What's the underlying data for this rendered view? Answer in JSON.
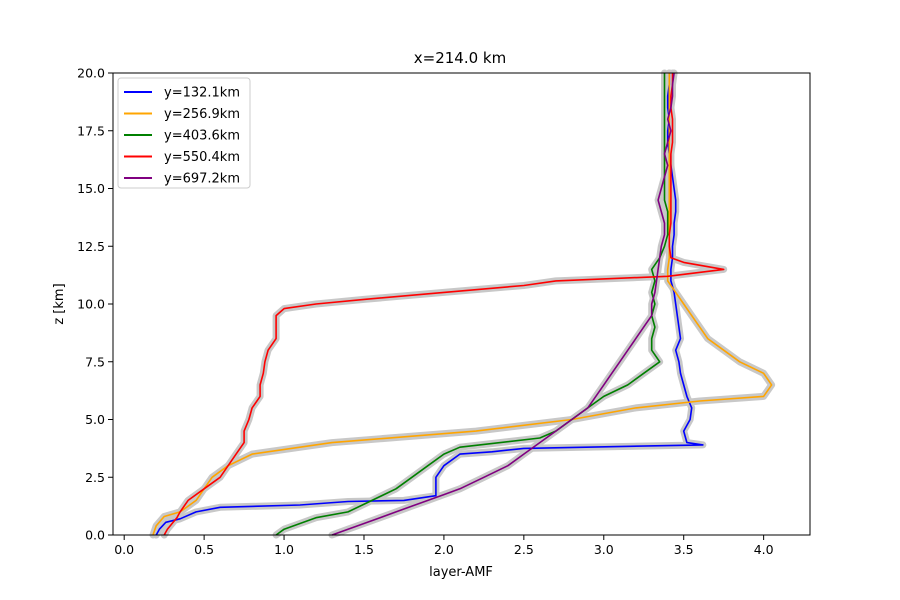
{
  "chart_data": {
    "type": "line",
    "title": "x=214.0 km",
    "xlabel": "layer-AMF",
    "ylabel": "z [km]",
    "xlim": [
      -0.07,
      4.29
    ],
    "ylim": [
      0,
      20
    ],
    "xticks": [
      0.0,
      0.5,
      1.0,
      1.5,
      2.0,
      2.5,
      3.0,
      3.5,
      4.0
    ],
    "xtick_labels": [
      "0.0",
      "0.5",
      "1.0",
      "1.5",
      "2.0",
      "2.5",
      "3.0",
      "3.5",
      "4.0"
    ],
    "yticks": [
      0.0,
      2.5,
      5.0,
      7.5,
      10.0,
      12.5,
      15.0,
      17.5,
      20.0
    ],
    "ytick_labels": [
      "0.0",
      "2.5",
      "5.0",
      "7.5",
      "10.0",
      "12.5",
      "15.0",
      "17.5",
      "20.0"
    ],
    "grid": false,
    "legend": "upper-left",
    "uncertainty_band_color": "#c8c8c8",
    "series": [
      {
        "name": "y=132.1km",
        "color": "#0000ff",
        "points": [
          [
            0.2,
            0
          ],
          [
            0.22,
            0.25
          ],
          [
            0.26,
            0.55
          ],
          [
            0.35,
            0.7
          ],
          [
            0.45,
            1.0
          ],
          [
            0.6,
            1.2
          ],
          [
            1.1,
            1.3
          ],
          [
            1.4,
            1.45
          ],
          [
            1.75,
            1.5
          ],
          [
            1.95,
            1.7
          ],
          [
            1.95,
            2.5
          ],
          [
            2.0,
            3.0
          ],
          [
            2.1,
            3.5
          ],
          [
            2.3,
            3.6
          ],
          [
            2.5,
            3.75
          ],
          [
            3.62,
            3.9
          ],
          [
            3.52,
            4.0
          ],
          [
            3.5,
            4.5
          ],
          [
            3.54,
            5.0
          ],
          [
            3.55,
            5.5
          ],
          [
            3.52,
            6.0
          ],
          [
            3.5,
            6.5
          ],
          [
            3.48,
            7.0
          ],
          [
            3.47,
            7.5
          ],
          [
            3.45,
            8.0
          ],
          [
            3.48,
            8.5
          ],
          [
            3.47,
            9.0
          ],
          [
            3.46,
            9.5
          ],
          [
            3.45,
            10.0
          ],
          [
            3.44,
            10.5
          ],
          [
            3.42,
            11.0
          ],
          [
            3.42,
            11.5
          ],
          [
            3.43,
            12.0
          ],
          [
            3.43,
            12.5
          ],
          [
            3.44,
            13.0
          ],
          [
            3.44,
            13.5
          ],
          [
            3.45,
            14.0
          ],
          [
            3.45,
            14.5
          ],
          [
            3.44,
            15.0
          ],
          [
            3.43,
            15.5
          ],
          [
            3.42,
            16.0
          ],
          [
            3.41,
            16.5
          ],
          [
            3.4,
            17.0
          ],
          [
            3.4,
            17.5
          ],
          [
            3.41,
            18.0
          ],
          [
            3.4,
            18.5
          ],
          [
            3.4,
            19.0
          ],
          [
            3.41,
            19.5
          ],
          [
            3.41,
            20.0
          ]
        ]
      },
      {
        "name": "y=256.9km",
        "color": "#ffa500",
        "points": [
          [
            0.18,
            0
          ],
          [
            0.2,
            0.4
          ],
          [
            0.25,
            0.8
          ],
          [
            0.35,
            1.0
          ],
          [
            0.45,
            1.5
          ],
          [
            0.5,
            2.0
          ],
          [
            0.55,
            2.5
          ],
          [
            0.65,
            3.0
          ],
          [
            0.8,
            3.5
          ],
          [
            1.3,
            4.0
          ],
          [
            2.2,
            4.5
          ],
          [
            2.8,
            5.0
          ],
          [
            3.2,
            5.5
          ],
          [
            3.6,
            5.8
          ],
          [
            4.0,
            6.0
          ],
          [
            4.05,
            6.5
          ],
          [
            4.0,
            7.0
          ],
          [
            3.85,
            7.5
          ],
          [
            3.75,
            8.0
          ],
          [
            3.65,
            8.5
          ],
          [
            3.6,
            9.0
          ],
          [
            3.55,
            9.5
          ],
          [
            3.5,
            10.0
          ],
          [
            3.45,
            10.5
          ],
          [
            3.4,
            11.0
          ],
          [
            3.4,
            11.5
          ],
          [
            3.41,
            12.0
          ],
          [
            3.41,
            12.5
          ],
          [
            3.41,
            13.0
          ],
          [
            3.41,
            13.5
          ],
          [
            3.41,
            14.0
          ],
          [
            3.41,
            14.5
          ],
          [
            3.41,
            15.0
          ],
          [
            3.41,
            15.5
          ],
          [
            3.41,
            16.0
          ],
          [
            3.41,
            16.5
          ],
          [
            3.41,
            17.0
          ],
          [
            3.41,
            17.5
          ],
          [
            3.41,
            18.0
          ],
          [
            3.41,
            18.5
          ],
          [
            3.41,
            19.0
          ],
          [
            3.41,
            19.5
          ],
          [
            3.41,
            20.0
          ]
        ]
      },
      {
        "name": "y=403.6km",
        "color": "#008000",
        "points": [
          [
            0.95,
            0
          ],
          [
            1.0,
            0.25
          ],
          [
            1.1,
            0.5
          ],
          [
            1.2,
            0.75
          ],
          [
            1.4,
            1.0
          ],
          [
            1.55,
            1.5
          ],
          [
            1.7,
            2.0
          ],
          [
            1.8,
            2.5
          ],
          [
            1.9,
            3.0
          ],
          [
            2.0,
            3.5
          ],
          [
            2.1,
            3.8
          ],
          [
            2.6,
            4.2
          ],
          [
            2.7,
            4.5
          ],
          [
            2.8,
            5.0
          ],
          [
            2.9,
            5.5
          ],
          [
            3.0,
            6.0
          ],
          [
            3.15,
            6.5
          ],
          [
            3.25,
            7.0
          ],
          [
            3.35,
            7.5
          ],
          [
            3.3,
            8.0
          ],
          [
            3.3,
            8.5
          ],
          [
            3.32,
            9.0
          ],
          [
            3.3,
            9.5
          ],
          [
            3.32,
            10.0
          ],
          [
            3.3,
            10.5
          ],
          [
            3.32,
            11.0
          ],
          [
            3.3,
            11.5
          ],
          [
            3.35,
            12.0
          ],
          [
            3.38,
            12.5
          ],
          [
            3.4,
            13.0
          ],
          [
            3.4,
            13.5
          ],
          [
            3.4,
            14.0
          ],
          [
            3.38,
            14.5
          ],
          [
            3.38,
            15.0
          ],
          [
            3.38,
            15.5
          ],
          [
            3.38,
            16.0
          ],
          [
            3.38,
            16.5
          ],
          [
            3.38,
            17.0
          ],
          [
            3.38,
            17.5
          ],
          [
            3.38,
            18.0
          ],
          [
            3.38,
            18.5
          ],
          [
            3.38,
            19.0
          ],
          [
            3.38,
            19.5
          ],
          [
            3.38,
            20.0
          ]
        ]
      },
      {
        "name": "y=550.4km",
        "color": "#ff0000",
        "points": [
          [
            0.25,
            0
          ],
          [
            0.27,
            0.25
          ],
          [
            0.3,
            0.5
          ],
          [
            0.33,
            0.75
          ],
          [
            0.35,
            1.0
          ],
          [
            0.4,
            1.5
          ],
          [
            0.5,
            2.0
          ],
          [
            0.6,
            2.5
          ],
          [
            0.65,
            3.0
          ],
          [
            0.7,
            3.5
          ],
          [
            0.75,
            4.0
          ],
          [
            0.75,
            4.5
          ],
          [
            0.78,
            5.0
          ],
          [
            0.8,
            5.5
          ],
          [
            0.85,
            6.0
          ],
          [
            0.85,
            6.5
          ],
          [
            0.87,
            7.0
          ],
          [
            0.88,
            7.5
          ],
          [
            0.9,
            8.0
          ],
          [
            0.95,
            8.5
          ],
          [
            0.95,
            9.0
          ],
          [
            0.95,
            9.5
          ],
          [
            1.0,
            9.8
          ],
          [
            1.2,
            10.0
          ],
          [
            1.5,
            10.2
          ],
          [
            2.0,
            10.5
          ],
          [
            2.5,
            10.8
          ],
          [
            2.7,
            11.0
          ],
          [
            3.4,
            11.2
          ],
          [
            3.75,
            11.5
          ],
          [
            3.5,
            11.8
          ],
          [
            3.42,
            12.0
          ],
          [
            3.41,
            12.5
          ],
          [
            3.41,
            13.0
          ],
          [
            3.42,
            13.5
          ],
          [
            3.42,
            14.0
          ],
          [
            3.42,
            14.5
          ],
          [
            3.42,
            15.0
          ],
          [
            3.42,
            15.5
          ],
          [
            3.42,
            16.0
          ],
          [
            3.42,
            16.5
          ],
          [
            3.43,
            17.0
          ],
          [
            3.43,
            17.5
          ],
          [
            3.43,
            18.0
          ],
          [
            3.42,
            18.5
          ],
          [
            3.42,
            19.0
          ],
          [
            3.43,
            19.5
          ],
          [
            3.43,
            20.0
          ]
        ]
      },
      {
        "name": "y=697.2km",
        "color": "#800080",
        "points": [
          [
            1.3,
            0
          ],
          [
            1.4,
            0.25
          ],
          [
            1.5,
            0.5
          ],
          [
            1.6,
            0.75
          ],
          [
            1.7,
            1.0
          ],
          [
            1.8,
            1.25
          ],
          [
            1.9,
            1.5
          ],
          [
            2.0,
            1.75
          ],
          [
            2.1,
            2.0
          ],
          [
            2.25,
            2.5
          ],
          [
            2.4,
            3.0
          ],
          [
            2.5,
            3.5
          ],
          [
            2.6,
            4.0
          ],
          [
            2.7,
            4.5
          ],
          [
            2.8,
            5.0
          ],
          [
            2.9,
            5.5
          ],
          [
            2.95,
            6.0
          ],
          [
            3.0,
            6.5
          ],
          [
            3.05,
            7.0
          ],
          [
            3.1,
            7.5
          ],
          [
            3.15,
            8.0
          ],
          [
            3.2,
            8.5
          ],
          [
            3.25,
            9.0
          ],
          [
            3.3,
            9.5
          ],
          [
            3.3,
            10.0
          ],
          [
            3.32,
            10.5
          ],
          [
            3.33,
            11.0
          ],
          [
            3.34,
            11.5
          ],
          [
            3.35,
            12.0
          ],
          [
            3.36,
            12.5
          ],
          [
            3.38,
            13.0
          ],
          [
            3.38,
            13.5
          ],
          [
            3.36,
            14.0
          ],
          [
            3.34,
            14.5
          ],
          [
            3.36,
            15.0
          ],
          [
            3.38,
            15.5
          ],
          [
            3.4,
            16.0
          ],
          [
            3.38,
            16.5
          ],
          [
            3.4,
            17.0
          ],
          [
            3.42,
            17.5
          ],
          [
            3.4,
            18.0
          ],
          [
            3.42,
            18.5
          ],
          [
            3.43,
            19.0
          ],
          [
            3.43,
            19.5
          ],
          [
            3.44,
            20.0
          ]
        ]
      }
    ]
  }
}
